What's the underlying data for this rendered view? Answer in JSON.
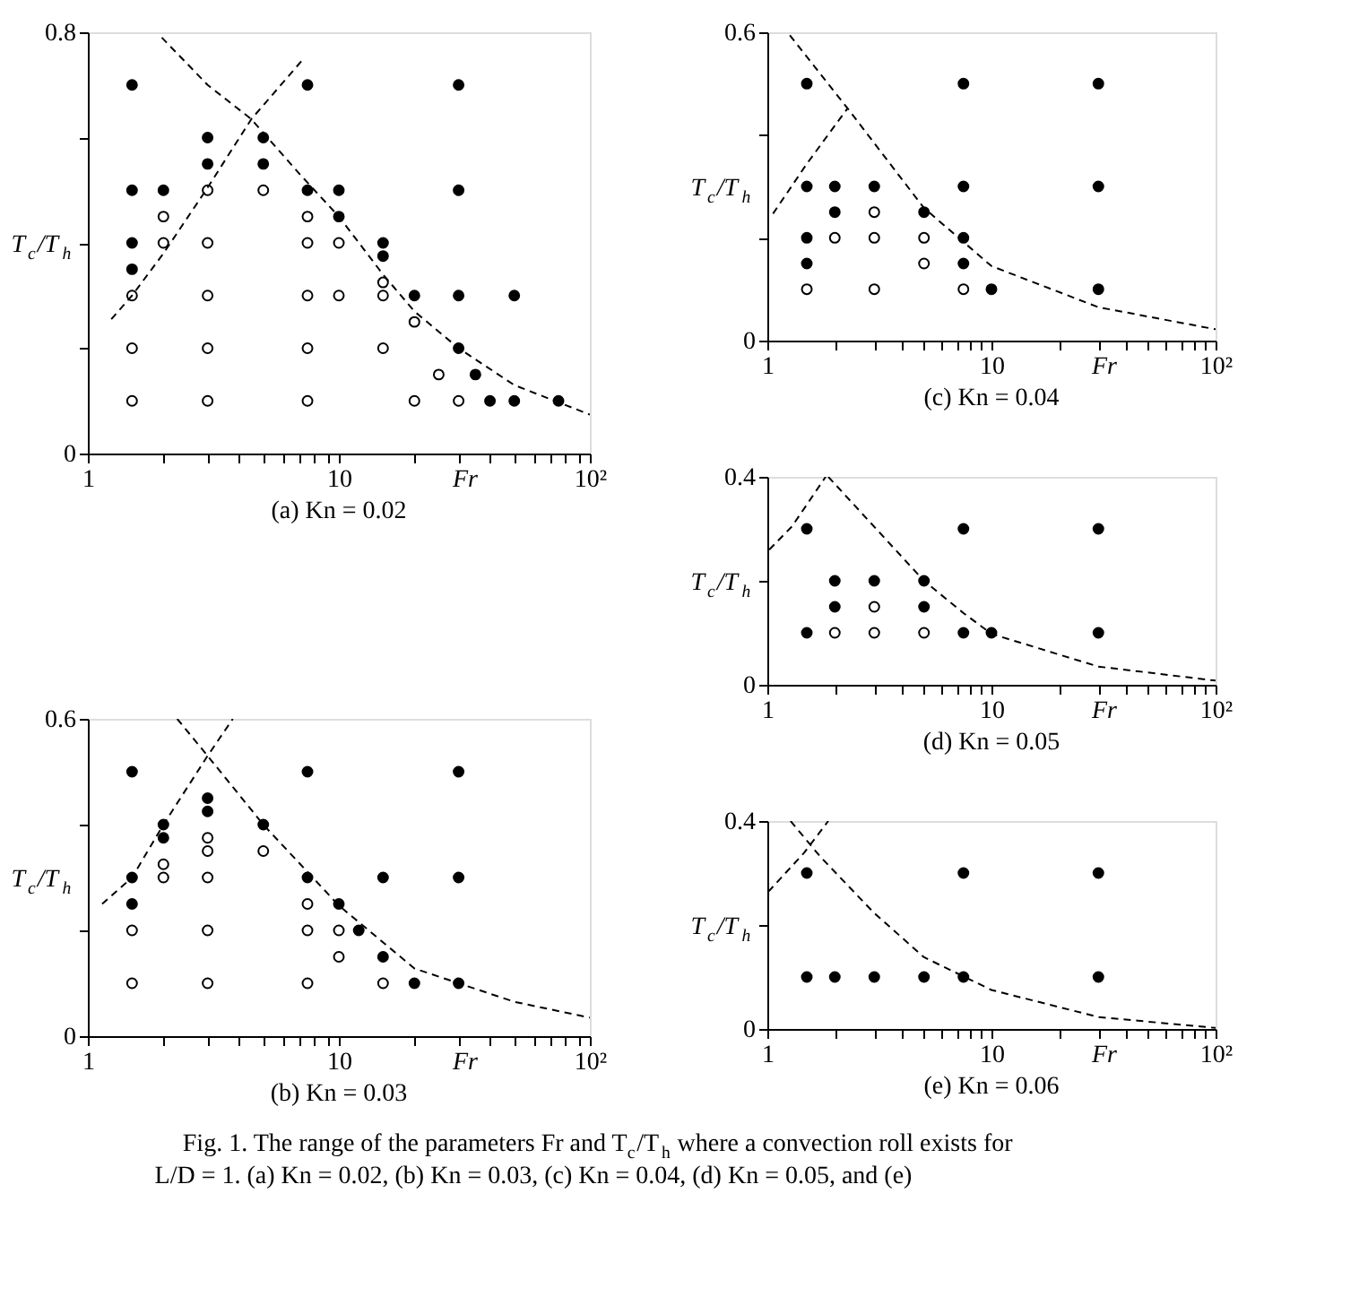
{
  "chart_data": [
    {
      "type": "scatter",
      "title": "(a) Kn = 0.02",
      "xlabel": "Fr",
      "ylabel": "T$_{c}$/T$_{h}$",
      "log": "x",
      "xlim": [
        1,
        100
      ],
      "xticks": [
        1,
        {
          "value": 2,
          "label": null
        },
        {
          "value": 3,
          "label": null
        },
        {
          "value": 4,
          "label": null
        },
        {
          "value": 5,
          "label": null
        },
        {
          "value": 6,
          "label": null
        },
        {
          "value": 7,
          "label": null
        },
        {
          "value": 8,
          "label": null
        },
        {
          "value": 9,
          "label": null
        },
        10,
        {
          "value": 20,
          "label": null
        },
        {
          "value": 30,
          "label": null
        },
        {
          "value": 40,
          "label": null
        },
        {
          "value": 50,
          "label": null
        },
        {
          "value": 60,
          "label": null
        },
        {
          "value": 70,
          "label": null
        },
        {
          "value": 80,
          "label": null
        },
        {
          "value": 90,
          "label": null
        },
        {
          "value": 100,
          "label": "10²"
        }
      ],
      "ylim": [
        0,
        0.8
      ],
      "yticks": [
        0,
        {
          "value": 0.2,
          "label": null
        },
        {
          "value": 0.4,
          "label": null
        },
        {
          "value": 0.6,
          "label": null
        },
        0.8
      ],
      "series": [
        {
          "marker": "circle",
          "color": "#000000",
          "x": [
            1.5,
            7.5,
            30,
            3,
            5,
            3,
            5,
            1.5,
            2,
            7.5,
            10,
            30,
            10,
            1.5,
            15,
            15,
            1.5,
            20,
            30,
            50,
            30,
            35,
            40,
            50,
            75
          ],
          "values": [
            0.7,
            0.7,
            0.7,
            0.6,
            0.6,
            0.55,
            0.55,
            0.5,
            0.5,
            0.5,
            0.5,
            0.5,
            0.45,
            0.4,
            0.4,
            0.375,
            0.35,
            0.3,
            0.3,
            0.3,
            0.2,
            0.15,
            0.1,
            0.1,
            0.1
          ]
        },
        {
          "marker": "circle",
          "color": "#ffffff",
          "x": [
            3,
            5,
            2,
            7.5,
            2,
            3,
            7.5,
            10,
            15,
            1.5,
            3,
            7.5,
            10,
            15,
            20,
            1.5,
            3,
            7.5,
            15,
            25,
            1.5,
            3,
            7.5,
            20,
            30
          ],
          "values": [
            0.5,
            0.5,
            0.45,
            0.45,
            0.4,
            0.4,
            0.4,
            0.4,
            0.325,
            0.3,
            0.3,
            0.3,
            0.3,
            0.3,
            0.25,
            0.2,
            0.2,
            0.2,
            0.2,
            0.15,
            0.1,
            0.1,
            0.1,
            0.1,
            0.1
          ]
        },
        {
          "type": "line",
          "marker": "none",
          "line_style": "dashed",
          "color": "#000000",
          "x": [
            1.97,
            3,
            4.48,
            7,
            10,
            15,
            20,
            30,
            50,
            100
          ],
          "values": [
            0.79,
            0.7,
            0.635,
            0.53,
            0.45,
            0.34,
            0.27,
            0.2,
            0.13,
            0.074
          ]
        },
        {
          "type": "line",
          "marker": "none",
          "line_style": "dashed",
          "color": "#000000",
          "x": [
            1.24,
            1.5,
            2,
            3,
            4.48,
            7.24
          ],
          "values": [
            0.255,
            0.3,
            0.38,
            0.505,
            0.635,
            0.75
          ]
        }
      ]
    },
    {
      "type": "scatter",
      "title": "(b) Kn = 0.03",
      "xlabel": "Fr",
      "ylabel": "T$_{c}$/T$_{h}$",
      "log": "x",
      "xlim": [
        1,
        100
      ],
      "xticks": [
        1,
        {
          "value": 2,
          "label": null
        },
        {
          "value": 3,
          "label": null
        },
        {
          "value": 4,
          "label": null
        },
        {
          "value": 5,
          "label": null
        },
        {
          "value": 6,
          "label": null
        },
        {
          "value": 7,
          "label": null
        },
        {
          "value": 8,
          "label": null
        },
        {
          "value": 9,
          "label": null
        },
        10,
        {
          "value": 20,
          "label": null
        },
        {
          "value": 30,
          "label": null
        },
        {
          "value": 40,
          "label": null
        },
        {
          "value": 50,
          "label": null
        },
        {
          "value": 60,
          "label": null
        },
        {
          "value": 70,
          "label": null
        },
        {
          "value": 80,
          "label": null
        },
        {
          "value": 90,
          "label": null
        },
        {
          "value": 100,
          "label": "10²"
        }
      ],
      "ylim": [
        0,
        0.6
      ],
      "yticks": [
        0,
        {
          "value": 0.2,
          "label": null
        },
        {
          "value": 0.4,
          "label": null
        },
        0.6
      ],
      "series": [
        {
          "marker": "circle",
          "color": "#000000",
          "x": [
            1.5,
            7.5,
            30,
            3,
            3,
            2,
            5,
            2,
            1.5,
            7.5,
            15,
            30,
            1.5,
            10,
            12,
            15,
            20,
            30
          ],
          "values": [
            0.5,
            0.5,
            0.5,
            0.45,
            0.425,
            0.4,
            0.4,
            0.375,
            0.3,
            0.3,
            0.3,
            0.3,
            0.25,
            0.25,
            0.2,
            0.15,
            0.1,
            0.1
          ]
        },
        {
          "marker": "circle",
          "color": "#ffffff",
          "x": [
            3,
            3,
            5,
            2,
            2,
            3,
            7.5,
            1.5,
            3,
            7.5,
            10,
            10,
            1.5,
            3,
            7.5,
            15
          ],
          "values": [
            0.375,
            0.35,
            0.35,
            0.325,
            0.3,
            0.3,
            0.25,
            0.2,
            0.2,
            0.2,
            0.2,
            0.15,
            0.1,
            0.1,
            0.1,
            0.1
          ]
        },
        {
          "type": "line",
          "marker": "none",
          "line_style": "dashed",
          "color": "#000000",
          "x": [
            2.27,
            3,
            5,
            10,
            20,
            30,
            50,
            100
          ],
          "values": [
            0.6,
            0.53,
            0.4,
            0.247,
            0.128,
            0.1,
            0.065,
            0.035
          ]
        },
        {
          "type": "line",
          "marker": "none",
          "line_style": "dashed",
          "color": "#000000",
          "x": [
            1.14,
            1.5,
            2,
            3,
            3.78
          ],
          "values": [
            0.25,
            0.3,
            0.4,
            0.53,
            0.6
          ]
        }
      ]
    },
    {
      "type": "scatter",
      "title": "(c) Kn = 0.04",
      "xlabel": "Fr",
      "ylabel": "T$_{c}$/T$_{h}$",
      "log": "x",
      "xlim": [
        1,
        100
      ],
      "xticks": [
        1,
        {
          "value": 2,
          "label": null
        },
        {
          "value": 3,
          "label": null
        },
        {
          "value": 4,
          "label": null
        },
        {
          "value": 5,
          "label": null
        },
        {
          "value": 6,
          "label": null
        },
        {
          "value": 7,
          "label": null
        },
        {
          "value": 8,
          "label": null
        },
        {
          "value": 9,
          "label": null
        },
        10,
        {
          "value": 20,
          "label": null
        },
        {
          "value": 30,
          "label": null
        },
        {
          "value": 40,
          "label": null
        },
        {
          "value": 50,
          "label": null
        },
        {
          "value": 60,
          "label": null
        },
        {
          "value": 70,
          "label": null
        },
        {
          "value": 80,
          "label": null
        },
        {
          "value": 90,
          "label": null
        },
        {
          "value": 100,
          "label": "10²"
        }
      ],
      "ylim": [
        0,
        0.6
      ],
      "yticks": [
        0,
        {
          "value": 0.2,
          "label": null
        },
        {
          "value": 0.4,
          "label": null
        },
        0.6
      ],
      "series": [
        {
          "marker": "circle",
          "color": "#000000",
          "x": [
            1.5,
            7.5,
            30,
            1.5,
            2,
            3,
            7.5,
            30,
            2,
            5,
            1.5,
            7.5,
            1.5,
            7.5,
            10,
            30
          ],
          "values": [
            0.5,
            0.5,
            0.5,
            0.3,
            0.3,
            0.3,
            0.3,
            0.3,
            0.25,
            0.25,
            0.2,
            0.2,
            0.15,
            0.15,
            0.1,
            0.1
          ]
        },
        {
          "marker": "circle",
          "color": "#ffffff",
          "x": [
            3,
            2,
            3,
            5,
            5,
            1.5,
            3,
            7.5
          ],
          "values": [
            0.25,
            0.2,
            0.2,
            0.2,
            0.15,
            0.1,
            0.1,
            0.1
          ]
        },
        {
          "type": "line",
          "marker": "none",
          "line_style": "dashed",
          "color": "#000000",
          "x": [
            1.26,
            2.28,
            5,
            10,
            30,
            100
          ],
          "values": [
            0.594,
            0.452,
            0.258,
            0.145,
            0.065,
            0.022
          ]
        },
        {
          "type": "line",
          "marker": "none",
          "line_style": "dashed",
          "color": "#000000",
          "x": [
            1.06,
            1.5,
            2.28
          ],
          "values": [
            0.247,
            0.344,
            0.452
          ]
        }
      ]
    },
    {
      "type": "scatter",
      "title": "(d) Kn = 0.05",
      "xlabel": "Fr",
      "ylabel": "T$_{c}$/T$_{h}$",
      "log": "x",
      "xlim": [
        1,
        100
      ],
      "xticks": [
        1,
        {
          "value": 2,
          "label": null
        },
        {
          "value": 3,
          "label": null
        },
        {
          "value": 4,
          "label": null
        },
        {
          "value": 5,
          "label": null
        },
        {
          "value": 6,
          "label": null
        },
        {
          "value": 7,
          "label": null
        },
        {
          "value": 8,
          "label": null
        },
        {
          "value": 9,
          "label": null
        },
        10,
        {
          "value": 20,
          "label": null
        },
        {
          "value": 30,
          "label": null
        },
        {
          "value": 40,
          "label": null
        },
        {
          "value": 50,
          "label": null
        },
        {
          "value": 60,
          "label": null
        },
        {
          "value": 70,
          "label": null
        },
        {
          "value": 80,
          "label": null
        },
        {
          "value": 90,
          "label": null
        },
        {
          "value": 100,
          "label": "10²"
        }
      ],
      "ylim": [
        0,
        0.4
      ],
      "yticks": [
        0,
        {
          "value": 0.2,
          "label": null
        },
        0.4
      ],
      "series": [
        {
          "marker": "circle",
          "color": "#000000",
          "x": [
            1.5,
            7.5,
            30,
            2,
            3,
            5,
            2,
            5,
            1.5,
            7.5,
            10,
            30
          ],
          "values": [
            0.3,
            0.3,
            0.3,
            0.2,
            0.2,
            0.2,
            0.15,
            0.15,
            0.1,
            0.1,
            0.1,
            0.1
          ]
        },
        {
          "marker": "circle",
          "color": "#ffffff",
          "x": [
            3,
            2,
            3,
            5
          ],
          "values": [
            0.15,
            0.1,
            0.1,
            0.1
          ]
        },
        {
          "type": "line",
          "marker": "none",
          "line_style": "dashed",
          "color": "#000000",
          "x": [
            1.87,
            5,
            7.5,
            10,
            30,
            100
          ],
          "values": [
            0.4,
            0.2,
            0.138,
            0.098,
            0.035,
            0.008
          ]
        },
        {
          "type": "line",
          "marker": "none",
          "line_style": "dashed",
          "color": "#000000",
          "x": [
            1.02,
            1.29,
            1.82
          ],
          "values": [
            0.26,
            0.305,
            0.4
          ]
        }
      ]
    },
    {
      "type": "scatter",
      "title": "(e) Kn = 0.06",
      "xlabel": "Fr",
      "ylabel": "T$_{c}$/T$_{h}$",
      "log": "x",
      "xlim": [
        1,
        100
      ],
      "xticks": [
        1,
        {
          "value": 2,
          "label": null
        },
        {
          "value": 3,
          "label": null
        },
        {
          "value": 4,
          "label": null
        },
        {
          "value": 5,
          "label": null
        },
        {
          "value": 6,
          "label": null
        },
        {
          "value": 7,
          "label": null
        },
        {
          "value": 8,
          "label": null
        },
        {
          "value": 9,
          "label": null
        },
        10,
        {
          "value": 20,
          "label": null
        },
        {
          "value": 30,
          "label": null
        },
        {
          "value": 40,
          "label": null
        },
        {
          "value": 50,
          "label": null
        },
        {
          "value": 60,
          "label": null
        },
        {
          "value": 70,
          "label": null
        },
        {
          "value": 80,
          "label": null
        },
        {
          "value": 90,
          "label": null
        },
        {
          "value": 100,
          "label": "10²"
        }
      ],
      "ylim": [
        0,
        0.4
      ],
      "yticks": [
        0,
        {
          "value": 0.2,
          "label": null
        },
        0.4
      ],
      "annotations": [
        "Fig. 1. The range of the parameters Fr and T$_{c}$/T$_{h}$ where a convection roll exists for",
        "L/D = 1. (a) Kn = 0.02, (b) Kn = 0.03, (c) Kn = 0.04, (d) Kn = 0.05, and (e)"
      ],
      "series": [
        {
          "marker": "circle",
          "color": "#000000",
          "x": [
            1.5,
            7.5,
            30,
            1.5,
            2,
            3,
            5,
            7.5,
            30
          ],
          "values": [
            0.3,
            0.3,
            0.3,
            0.1,
            0.1,
            0.1,
            0.1,
            0.1,
            0.1
          ]
        },
        {
          "type": "line",
          "marker": "none",
          "line_style": "dashed",
          "color": "#000000",
          "x": [
            1.27,
            1.71,
            2.98,
            5,
            10,
            30,
            100
          ],
          "values": [
            0.4,
            0.333,
            0.224,
            0.138,
            0.075,
            0.023,
            0.002
          ]
        },
        {
          "type": "line",
          "marker": "none",
          "line_style": "dashed",
          "color": "#000000",
          "x": [
            1.01,
            1.46,
            1.87
          ],
          "values": [
            0.264,
            0.339,
            0.4
          ]
        }
      ]
    }
  ]
}
